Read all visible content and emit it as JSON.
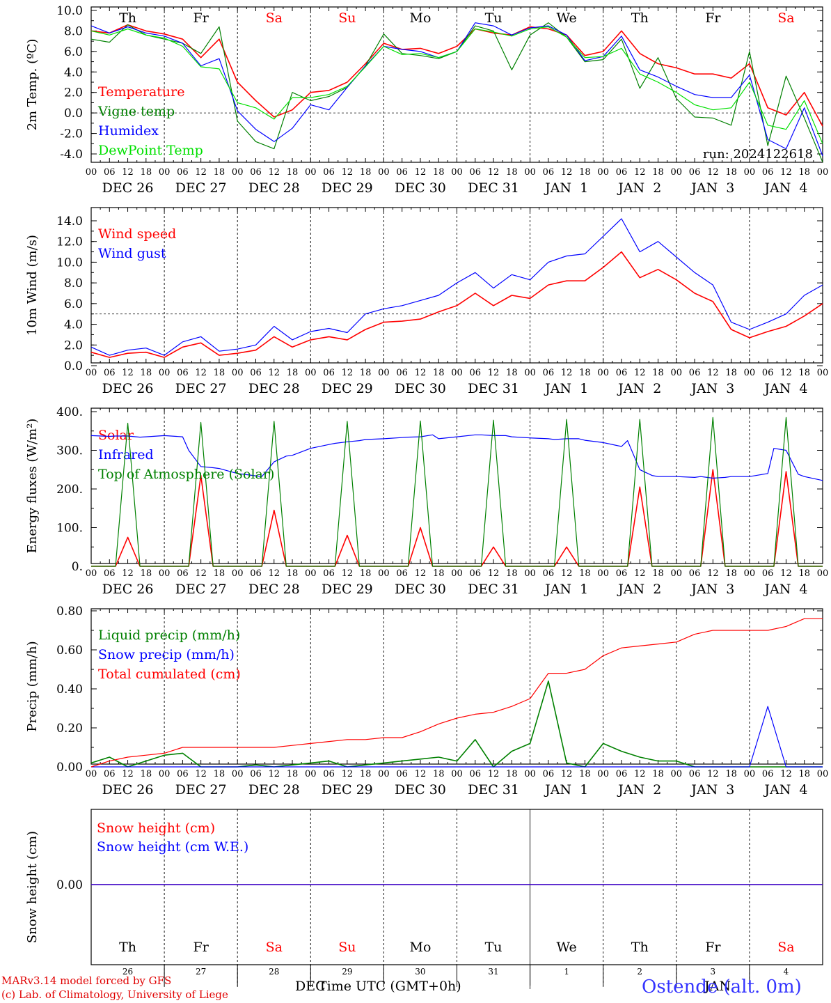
{
  "colors": {
    "red": "#ff0000",
    "dark_green": "#008000",
    "blue": "#0000ff",
    "light_green": "#00e000",
    "axis": "#000000",
    "weekend": "#ff0000",
    "station": "#3333ff"
  },
  "header": {
    "run": "run: 2024122618",
    "station": "Ostende (alt. 0m)",
    "footer_line1": "MARv3.14 model forced by GFS",
    "footer_line2": "(c) Lab. of Climatology, University of Liege",
    "xaxis_title": "Time UTC (GMT+0h)",
    "month_left": "DEC",
    "month_right": "JAN"
  },
  "days": [
    {
      "dow": "Th",
      "date": "DEC 26",
      "num": "26",
      "weekend": false
    },
    {
      "dow": "Fr",
      "date": "DEC 27",
      "num": "27",
      "weekend": false
    },
    {
      "dow": "Sa",
      "date": "DEC 28",
      "num": "28",
      "weekend": true
    },
    {
      "dow": "Su",
      "date": "DEC 29",
      "num": "29",
      "weekend": true
    },
    {
      "dow": "Mo",
      "date": "DEC 30",
      "num": "30",
      "weekend": false
    },
    {
      "dow": "Tu",
      "date": "DEC 31",
      "num": "31",
      "weekend": false
    },
    {
      "dow": "We",
      "date": "JAN  1",
      "num": "1",
      "weekend": false
    },
    {
      "dow": "Th",
      "date": "JAN  2",
      "num": "2",
      "weekend": false
    },
    {
      "dow": "Fr",
      "date": "JAN  3",
      "num": "3",
      "weekend": false
    },
    {
      "dow": "Sa",
      "date": "JAN  4",
      "num": "4",
      "weekend": true
    }
  ],
  "hour_ticks": [
    "00",
    "06",
    "12",
    "18"
  ],
  "chart_data": [
    {
      "type": "line",
      "ylabel": "2m Temp. (ºC)",
      "ylim": [
        -5,
        10
      ],
      "yticks": [
        -4.0,
        -2.0,
        0.0,
        2.0,
        4.0,
        6.0,
        8.0,
        10.0
      ],
      "ytick_labels": [
        "-4.0",
        "-2.0",
        "0.0",
        "2.0",
        "4.0",
        "6.0",
        "8.0",
        "10.0"
      ],
      "ref_line": 0.0,
      "xlim": [
        0,
        240
      ],
      "x": [
        0,
        6,
        12,
        18,
        24,
        30,
        36,
        42,
        48,
        54,
        60,
        66,
        72,
        78,
        84,
        90,
        96,
        102,
        108,
        114,
        120,
        126,
        132,
        138,
        144,
        150,
        156,
        162,
        168,
        174,
        180,
        186,
        192,
        198,
        204,
        210,
        216,
        222,
        228,
        234,
        240
      ],
      "series": [
        {
          "name": "Temperature",
          "color": "#ff0000",
          "values": [
            8.0,
            7.8,
            8.6,
            8.0,
            7.7,
            7.2,
            5.4,
            7.2,
            3.0,
            1.2,
            -0.4,
            0.3,
            2.0,
            2.2,
            3.0,
            4.8,
            6.8,
            6.2,
            6.3,
            5.8,
            6.5,
            8.2,
            7.8,
            7.6,
            8.4,
            8.2,
            7.6,
            5.6,
            6.0,
            8.0,
            5.8,
            4.8,
            4.4,
            3.8,
            3.8,
            3.4,
            4.8,
            0.5,
            -0.2,
            2.0,
            -1.3
          ]
        },
        {
          "name": "Vigne temp",
          "color": "#008000",
          "values": [
            7.2,
            6.9,
            8.6,
            7.6,
            7.2,
            6.8,
            5.8,
            8.4,
            -0.8,
            -2.8,
            -3.5,
            2.0,
            1.2,
            1.6,
            2.5,
            4.6,
            7.7,
            5.8,
            5.6,
            5.3,
            6.0,
            8.5,
            8.0,
            4.2,
            7.6,
            8.8,
            7.4,
            5.0,
            5.2,
            7.2,
            2.4,
            5.4,
            1.4,
            -0.4,
            -0.5,
            -1.2,
            6.0,
            -3.2,
            3.6,
            -0.5,
            -4.8
          ]
        },
        {
          "name": "Humidex",
          "color": "#0000ff",
          "values": [
            8.5,
            7.8,
            8.4,
            7.8,
            7.5,
            6.8,
            4.6,
            5.3,
            0.2,
            -1.6,
            -2.8,
            -1.5,
            0.8,
            0.3,
            2.5,
            4.6,
            6.5,
            6.2,
            6.0,
            5.4,
            6.0,
            8.8,
            8.5,
            7.6,
            8.3,
            8.5,
            7.6,
            5.1,
            5.5,
            7.5,
            4.2,
            3.5,
            2.6,
            1.8,
            1.5,
            1.5,
            3.7,
            -2.6,
            -3.5,
            0.5,
            -4.2
          ]
        },
        {
          "name": "DewPoint Temp",
          "color": "#00e000",
          "values": [
            8.0,
            7.6,
            8.2,
            7.6,
            7.3,
            6.5,
            4.5,
            4.3,
            1.0,
            0.5,
            -0.6,
            1.5,
            1.5,
            1.8,
            2.6,
            4.5,
            6.5,
            5.7,
            5.8,
            5.4,
            6.0,
            8.2,
            7.9,
            7.5,
            8.2,
            8.4,
            7.4,
            5.4,
            5.5,
            6.3,
            3.8,
            3.0,
            2.0,
            0.8,
            0.3,
            0.5,
            3.0,
            -1.2,
            -1.6,
            1.2,
            -3.0
          ]
        }
      ]
    },
    {
      "type": "line",
      "ylabel": "10m Wind (m/s)",
      "ylim": [
        0,
        15
      ],
      "yticks": [
        0.0,
        2.0,
        4.0,
        6.0,
        8.0,
        10.0,
        12.0,
        14.0
      ],
      "ytick_labels": [
        "0.0",
        "2.0",
        "4.0",
        "6.0",
        "8.0",
        "10.0",
        "12.0",
        "14.0"
      ],
      "ref_line": 5.0,
      "xlim": [
        0,
        240
      ],
      "x": [
        0,
        6,
        12,
        18,
        24,
        30,
        36,
        42,
        48,
        54,
        60,
        66,
        72,
        78,
        84,
        90,
        96,
        102,
        108,
        114,
        120,
        126,
        132,
        138,
        144,
        150,
        156,
        162,
        168,
        174,
        180,
        186,
        192,
        198,
        204,
        210,
        216,
        222,
        228,
        234,
        240
      ],
      "series": [
        {
          "name": "Wind speed",
          "color": "#ff0000",
          "values": [
            1.3,
            0.8,
            1.2,
            1.3,
            0.8,
            1.8,
            2.2,
            1.0,
            1.2,
            1.5,
            2.8,
            1.8,
            2.5,
            2.8,
            2.5,
            3.5,
            4.2,
            4.3,
            4.5,
            5.2,
            5.8,
            7.0,
            5.8,
            6.8,
            6.5,
            7.8,
            8.2,
            8.2,
            9.5,
            11.0,
            8.5,
            9.3,
            8.3,
            7.0,
            6.2,
            3.5,
            2.7,
            3.3,
            3.8,
            4.8,
            6.0
          ]
        },
        {
          "name": "Wind gust",
          "color": "#0000ff",
          "values": [
            1.8,
            1.0,
            1.5,
            1.7,
            1.0,
            2.3,
            2.8,
            1.4,
            1.6,
            2.0,
            3.8,
            2.5,
            3.3,
            3.6,
            3.2,
            5.0,
            5.5,
            5.8,
            6.3,
            6.8,
            8.0,
            9.0,
            7.5,
            8.8,
            8.3,
            10.0,
            10.6,
            10.8,
            12.5,
            14.2,
            11.0,
            12.0,
            10.5,
            9.0,
            7.8,
            4.2,
            3.5,
            4.2,
            5.0,
            6.8,
            7.8
          ]
        }
      ]
    },
    {
      "type": "line",
      "ylabel": "Energy fluxes (W/m²)",
      "ylim": [
        0,
        400
      ],
      "yticks": [
        0,
        100,
        200,
        300,
        400
      ],
      "ytick_labels": [
        "0.",
        "100.",
        "200.",
        "300.",
        "400."
      ],
      "xlim": [
        0,
        240
      ],
      "x": [
        0,
        6,
        8,
        12,
        16,
        18,
        24,
        30,
        32,
        36,
        40,
        42,
        48,
        54,
        56,
        60,
        64,
        66,
        72,
        78,
        80,
        84,
        88,
        90,
        96,
        102,
        104,
        108,
        112,
        114,
        120,
        126,
        128,
        132,
        136,
        138,
        144,
        150,
        152,
        156,
        160,
        162,
        168,
        174,
        176,
        180,
        184,
        186,
        192,
        198,
        200,
        204,
        208,
        210,
        216,
        222,
        224,
        228,
        232,
        234,
        240
      ],
      "series": [
        {
          "name": "Solar",
          "color": "#ff0000",
          "values": [
            0,
            0,
            0,
            75,
            0,
            0,
            0,
            0,
            0,
            235,
            0,
            0,
            0,
            0,
            0,
            145,
            0,
            0,
            0,
            0,
            0,
            80,
            0,
            0,
            0,
            0,
            0,
            100,
            0,
            0,
            0,
            0,
            0,
            50,
            0,
            0,
            0,
            0,
            0,
            50,
            0,
            0,
            0,
            0,
            0,
            205,
            0,
            0,
            0,
            0,
            0,
            250,
            0,
            0,
            0,
            0,
            0,
            245,
            0,
            0,
            0
          ]
        },
        {
          "name": "Infrared",
          "color": "#0000ff",
          "values": [
            338,
            336,
            337,
            337,
            334,
            335,
            338,
            335,
            300,
            258,
            255,
            253,
            240,
            234,
            232,
            270,
            285,
            287,
            305,
            315,
            318,
            322,
            325,
            328,
            330,
            333,
            334,
            335,
            340,
            330,
            335,
            340,
            340,
            338,
            338,
            335,
            332,
            330,
            328,
            330,
            330,
            326,
            320,
            310,
            325,
            250,
            235,
            232,
            232,
            230,
            232,
            228,
            230,
            232,
            232,
            240,
            305,
            300,
            238,
            232,
            222
          ]
        },
        {
          "name": "Top of Atmosphere (Solar)",
          "color": "#008000",
          "values": [
            0,
            0,
            0,
            370,
            0,
            0,
            0,
            0,
            0,
            372,
            0,
            0,
            0,
            0,
            0,
            375,
            0,
            0,
            0,
            0,
            0,
            375,
            0,
            0,
            0,
            0,
            0,
            376,
            0,
            0,
            0,
            0,
            0,
            378,
            0,
            0,
            0,
            0,
            0,
            380,
            0,
            0,
            0,
            0,
            0,
            380,
            0,
            0,
            0,
            0,
            0,
            385,
            0,
            0,
            0,
            0,
            0,
            385,
            0,
            0,
            0
          ]
        }
      ]
    },
    {
      "type": "line",
      "ylabel": "Precip (mm/h)",
      "ylim": [
        0,
        0.8
      ],
      "yticks": [
        0.0,
        0.2,
        0.4,
        0.6,
        0.8
      ],
      "ytick_labels": [
        "0.00",
        "0.20",
        "0.40",
        "0.60",
        "0.80"
      ],
      "xlim": [
        0,
        240
      ],
      "x": [
        0,
        6,
        12,
        18,
        24,
        30,
        36,
        42,
        48,
        54,
        60,
        66,
        72,
        78,
        84,
        90,
        96,
        102,
        108,
        114,
        120,
        126,
        132,
        138,
        144,
        150,
        156,
        162,
        168,
        174,
        180,
        186,
        192,
        198,
        204,
        210,
        216,
        222,
        228,
        234,
        240
      ],
      "series": [
        {
          "name": "Liquid precip (mm/h)",
          "color": "#008000",
          "values": [
            0.02,
            0.05,
            0.0,
            0.03,
            0.06,
            0.07,
            0.0,
            0.0,
            0.0,
            0.01,
            0.0,
            0.01,
            0.02,
            0.03,
            0.0,
            0.01,
            0.02,
            0.03,
            0.04,
            0.05,
            0.03,
            0.14,
            0.0,
            0.08,
            0.12,
            0.44,
            0.02,
            0.0,
            0.12,
            0.08,
            0.05,
            0.03,
            0.03,
            0.0,
            0.0,
            0.0,
            0.0,
            0.0,
            0.0,
            0.0,
            0.0
          ]
        },
        {
          "name": "Snow precip (mm/h)",
          "color": "#0000ff",
          "values": [
            0,
            0,
            0,
            0,
            0,
            0,
            0,
            0,
            0,
            0,
            0,
            0,
            0,
            0,
            0,
            0,
            0,
            0,
            0,
            0,
            0,
            0,
            0,
            0,
            0,
            0,
            0,
            0,
            0,
            0,
            0,
            0,
            0,
            0,
            0,
            0,
            0,
            0.31,
            0,
            0,
            0
          ]
        },
        {
          "name": "Total cumulated (cm)",
          "color": "#ff0000",
          "values": [
            0.0,
            0.03,
            0.05,
            0.06,
            0.07,
            0.1,
            0.1,
            0.1,
            0.1,
            0.1,
            0.1,
            0.11,
            0.12,
            0.13,
            0.14,
            0.14,
            0.15,
            0.15,
            0.18,
            0.22,
            0.25,
            0.27,
            0.28,
            0.31,
            0.35,
            0.48,
            0.48,
            0.5,
            0.57,
            0.61,
            0.62,
            0.63,
            0.64,
            0.68,
            0.7,
            0.7,
            0.7,
            0.7,
            0.72,
            0.76,
            0.76
          ]
        }
      ]
    },
    {
      "type": "line",
      "ylabel": "Snow height (cm)",
      "yticks": [
        0.0
      ],
      "ytick_labels": [
        "0.00"
      ],
      "xlim": [
        0,
        240
      ],
      "x": [
        0,
        240
      ],
      "series": [
        {
          "name": "Snow height (cm)",
          "color": "#ff0000",
          "values": [
            0.0,
            0.0
          ]
        },
        {
          "name": "Snow height (cm W.E.)",
          "color": "#0000ff",
          "values": [
            0.0,
            0.0
          ]
        }
      ]
    }
  ]
}
